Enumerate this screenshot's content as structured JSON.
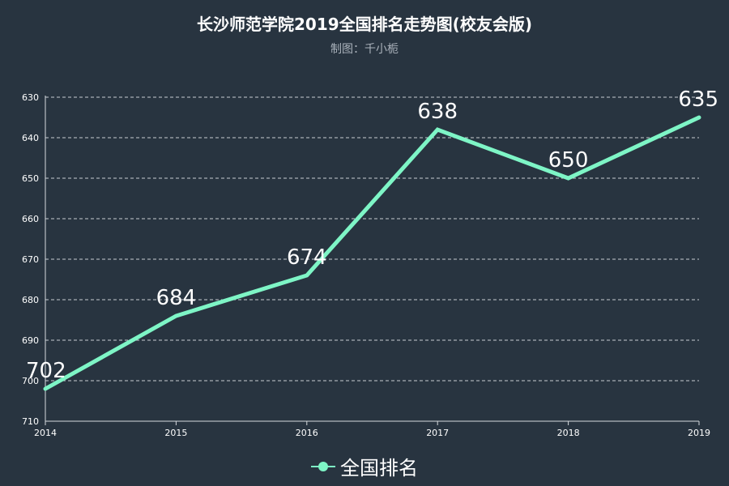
{
  "chart_data": {
    "type": "line",
    "title": "长沙师范学院2019全国排名走势图(校友会版)",
    "subtitle": "制图：千小栀",
    "categories": [
      "2014",
      "2015",
      "2016",
      "2017",
      "2018",
      "2019"
    ],
    "series": [
      {
        "name": "全国排名",
        "values": [
          702,
          684,
          674,
          638,
          650,
          635
        ],
        "color": "#7ef5c6"
      }
    ],
    "ylim": [
      630,
      710
    ],
    "y_inverted": true,
    "y_ticks": [
      630,
      640,
      650,
      660,
      670,
      680,
      690,
      700,
      710
    ],
    "grid": true,
    "legend": "bottom-center"
  }
}
